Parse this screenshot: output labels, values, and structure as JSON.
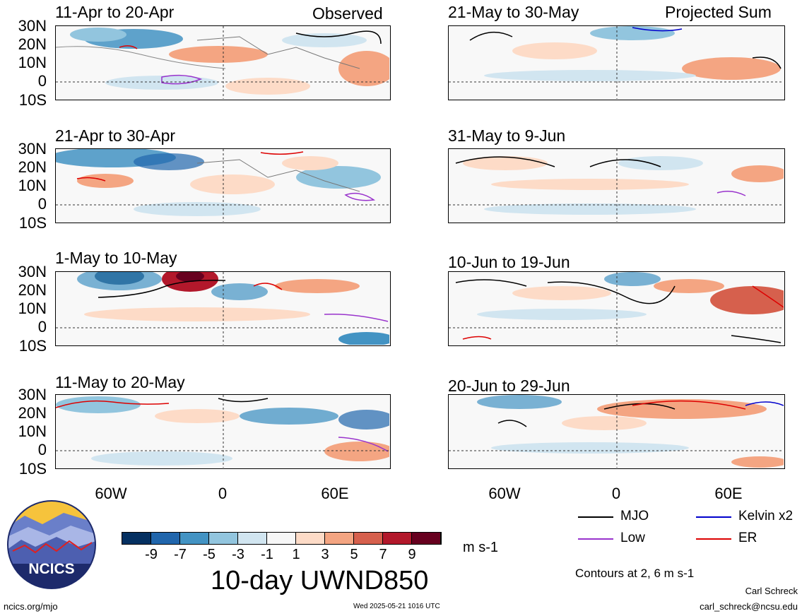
{
  "left_column_label": "Observed",
  "right_column_label": "Projected Sum",
  "panels": [
    {
      "title": "11-Apr to 20-Apr"
    },
    {
      "title": "21-Apr to 30-Apr"
    },
    {
      "title": "1-May to 10-May"
    },
    {
      "title": "11-May to 20-May"
    },
    {
      "title": "21-May to 30-May"
    },
    {
      "title": "31-May to 9-Jun"
    },
    {
      "title": "10-Jun to 19-Jun"
    },
    {
      "title": "20-Jun to 29-Jun"
    }
  ],
  "lat_labels": [
    "30N",
    "20N",
    "10N",
    "0",
    "10S"
  ],
  "lon_labels": [
    "60W",
    "0",
    "60E"
  ],
  "colorbar": {
    "colors": [
      "#053061",
      "#2166ac",
      "#4393c3",
      "#92c5de",
      "#d1e5f0",
      "#f7f7f7",
      "#fddbc7",
      "#f4a582",
      "#d6604d",
      "#b2182b",
      "#67001f"
    ],
    "tick_labels": [
      "-9",
      "-7",
      "-5",
      "-3",
      "-1",
      "1",
      "3",
      "5",
      "7",
      "9"
    ],
    "units": "m s-1",
    "title": "10-day UWND850"
  },
  "legend": {
    "items": [
      {
        "label": "MJO",
        "color": "#000000"
      },
      {
        "label": "Kelvin x2",
        "color": "#0000cc"
      },
      {
        "label": "Low",
        "color": "#9933cc"
      },
      {
        "label": "ER",
        "color": "#dd0000"
      }
    ],
    "contours_note": "Contours at 2, 6 m s-1"
  },
  "logo": {
    "text": "NCICS"
  },
  "footer": {
    "url": "ncics.org/mjo",
    "timestamp": "Wed 2025-05-21 1016 UTC",
    "author": "Carl Schreck",
    "email": "carl_schreck@ncsu.edu"
  }
}
